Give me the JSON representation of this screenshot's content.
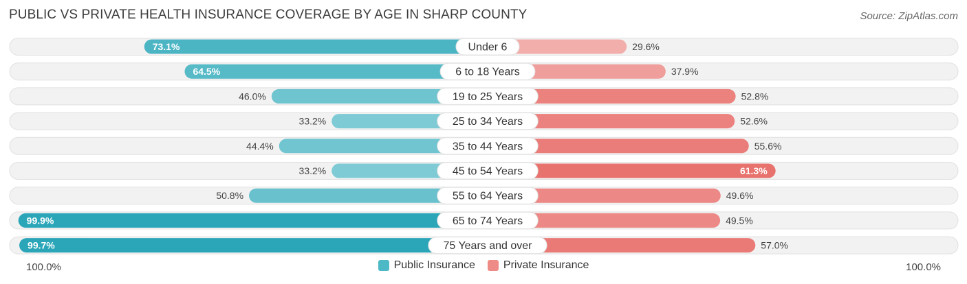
{
  "title": "PUBLIC VS PRIVATE HEALTH INSURANCE COVERAGE BY AGE IN SHARP COUNTY",
  "source": "Source: ZipAtlas.com",
  "colors": {
    "public_dark": "#2aa6b8",
    "public_light": "#7ecbd5",
    "private_dark": "#e8726e",
    "private_light": "#f2aeab"
  },
  "axis": {
    "left_label": "100.0%",
    "right_label": "100.0%"
  },
  "legend": [
    {
      "label": "Public Insurance",
      "color": "#4db8c6"
    },
    {
      "label": "Private Insurance",
      "color": "#ee8b86"
    }
  ],
  "chart_data": {
    "type": "bar",
    "orientation": "horizontal-diverging",
    "title": "PUBLIC VS PRIVATE HEALTH INSURANCE COVERAGE BY AGE IN SHARP COUNTY",
    "categories": [
      "Under 6",
      "6 to 18 Years",
      "19 to 25 Years",
      "25 to 34 Years",
      "35 to 44 Years",
      "45 to 54 Years",
      "55 to 64 Years",
      "65 to 74 Years",
      "75 Years and over"
    ],
    "series": [
      {
        "name": "Public Insurance",
        "values": [
          73.1,
          64.5,
          46.0,
          33.2,
          44.4,
          33.2,
          50.8,
          99.9,
          99.7
        ]
      },
      {
        "name": "Private Insurance",
        "values": [
          29.6,
          37.9,
          52.8,
          52.6,
          55.6,
          61.3,
          49.6,
          49.5,
          57.0
        ]
      }
    ],
    "labels": {
      "public": [
        "73.1%",
        "64.5%",
        "46.0%",
        "33.2%",
        "44.4%",
        "33.2%",
        "50.8%",
        "99.9%",
        "99.7%"
      ],
      "private": [
        "29.6%",
        "37.9%",
        "52.8%",
        "52.6%",
        "55.6%",
        "61.3%",
        "49.6%",
        "49.5%",
        "57.0%"
      ]
    },
    "xlim": [
      -100,
      100
    ],
    "legend_position": "bottom-center"
  }
}
